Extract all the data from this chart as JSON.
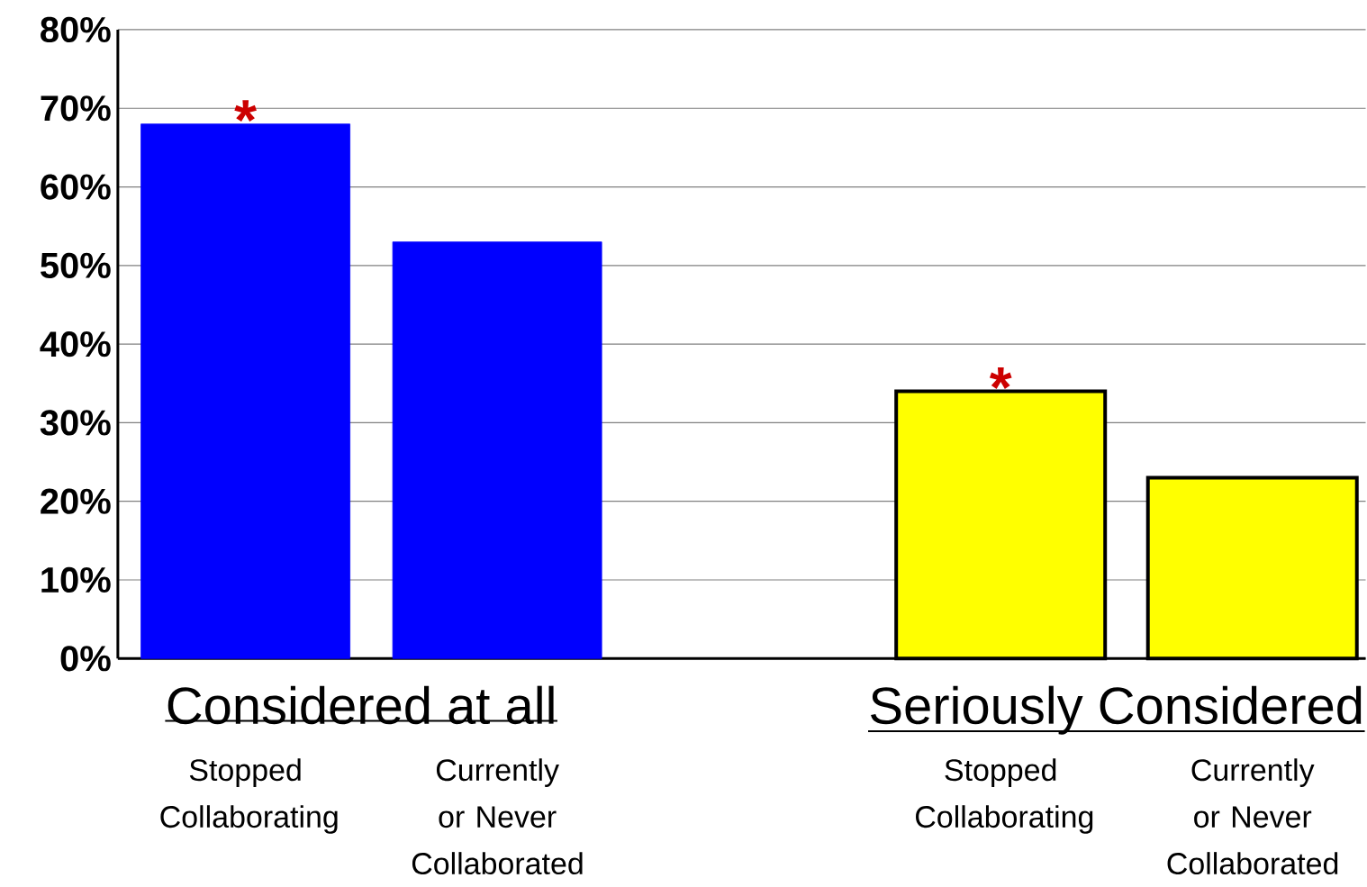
{
  "chart_data": {
    "type": "bar",
    "categories": [
      "Stopped Collaborating",
      "Currently or Never Collaborated",
      null,
      "Stopped Collaborating",
      "Currently or Never Collaborated"
    ],
    "series": [
      {
        "color": "#0000ff",
        "values": [
          68,
          53,
          null,
          null,
          null
        ],
        "value_labels": [
          "*",
          null,
          null,
          null,
          null
        ]
      },
      {
        "color": "#ffff00",
        "values": [
          null,
          null,
          null,
          34,
          23
        ],
        "value_labels": [
          null,
          null,
          null,
          "*",
          null
        ]
      }
    ],
    "ylim": [
      0,
      80
    ],
    "yticks": [
      {
        "value": 0,
        "label": "0%"
      },
      {
        "value": 10,
        "label": "10%"
      },
      {
        "value": 20,
        "label": "20%"
      },
      {
        "value": 30,
        "label": "30%"
      },
      {
        "value": 40,
        "label": "40%"
      },
      {
        "value": 50,
        "label": "50%"
      },
      {
        "value": 60,
        "label": "60%"
      },
      {
        "value": 70,
        "label": "70%"
      },
      {
        "value": 80,
        "label": "80%"
      }
    ],
    "grid": "y",
    "annotations": [
      "Considered at all",
      "Seriously Considered"
    ]
  }
}
